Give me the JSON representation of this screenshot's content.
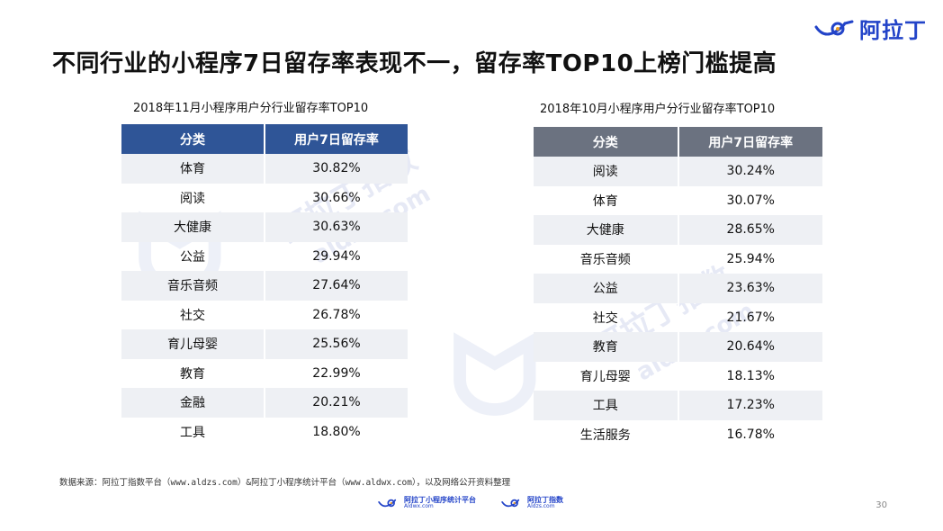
{
  "brand": {
    "name": "阿拉丁"
  },
  "page_title": "不同行业的小程序7日留存率表现不一，留存率TOP10上榜门槛提高",
  "left_table": {
    "caption": "2018年11月小程序用户分行业留存率TOP10",
    "headers": [
      "分类",
      "用户7日留存率"
    ],
    "rows": [
      [
        "体育",
        "30.82%"
      ],
      [
        "阅读",
        "30.66%"
      ],
      [
        "大健康",
        "30.63%"
      ],
      [
        "公益",
        "29.94%"
      ],
      [
        "音乐音频",
        "27.64%"
      ],
      [
        "社交",
        "26.78%"
      ],
      [
        "育儿母婴",
        "25.56%"
      ],
      [
        "教育",
        "22.99%"
      ],
      [
        "金融",
        "20.21%"
      ],
      [
        "工具",
        "18.80%"
      ]
    ]
  },
  "right_table": {
    "caption": "2018年10月小程序用户分行业留存率TOP10",
    "headers": [
      "分类",
      "用户7日留存率"
    ],
    "rows": [
      [
        "阅读",
        "30.24%"
      ],
      [
        "体育",
        "30.07%"
      ],
      [
        "大健康",
        "28.65%"
      ],
      [
        "音乐音频",
        "25.94%"
      ],
      [
        "公益",
        "23.63%"
      ],
      [
        "社交",
        "21.67%"
      ],
      [
        "教育",
        "20.64%"
      ],
      [
        "育儿母婴",
        "18.13%"
      ],
      [
        "工具",
        "17.23%"
      ],
      [
        "生活服务",
        "16.78%"
      ]
    ]
  },
  "source_note": "数据来源：阿拉丁指数平台（www.aldzs.com）&阿拉丁小程序统计平台（www.aldwx.com），以及网络公开资料整理",
  "footer": {
    "logo1_name": "阿拉丁小程序统计平台",
    "logo1_url": "Aldwx.com",
    "logo2_name": "阿拉丁指数",
    "logo2_url": "Aldzs.com"
  },
  "watermark": {
    "text1": "阿拉丁指数",
    "text2": "aldzs.com"
  },
  "page_number": "30",
  "colors": {
    "left_header": "#2f5597",
    "right_header": "#6b7280",
    "brand": "#2243c8"
  }
}
